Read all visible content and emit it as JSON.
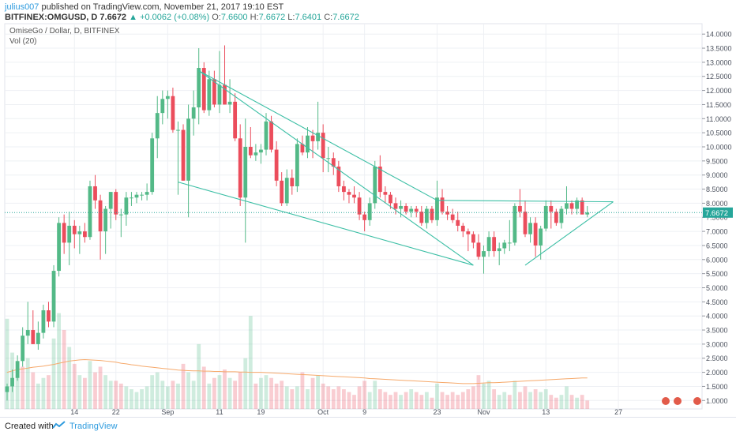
{
  "header": {
    "author": "julius007",
    "published_text": "published on TradingView.com, November 21, 2017 19:10 EST",
    "symbol": "BITFINEX:OMGUSD, D",
    "last": "7.6672",
    "change": "+0.0062 (+0.08%)",
    "o_label": "O:",
    "o_val": "7.6600",
    "h_label": "H:",
    "h_val": "7.6672",
    "l_label": "L:",
    "l_val": "7.6401",
    "c_label": "C:",
    "c_val": "7.6672"
  },
  "footer": {
    "created_with": "Created with",
    "brand": "TradingView"
  },
  "colors": {
    "up": "#53b987",
    "down": "#eb4d5c",
    "trendline": "#3cbfa5",
    "ma": "#f6a96b",
    "grid": "#eef0f4",
    "axis": "#9598a1",
    "price_tag": "#26a69a"
  },
  "chart_data": {
    "type": "candlestick",
    "title": "OmiseGo / Dollar, D, BITFINEX",
    "indicator": "Vol (20)",
    "ylim": [
      0.7,
      14.3
    ],
    "y_ticks": [
      "14.0000",
      "13.5000",
      "13.0000",
      "12.5000",
      "12.0000",
      "11.5000",
      "11.0000",
      "10.5000",
      "10.0000",
      "9.5000",
      "9.0000",
      "8.5000",
      "8.0000",
      "7.5000",
      "7.0000",
      "6.5000",
      "6.0000",
      "5.5000",
      "5.0000",
      "4.5000",
      "4.0000",
      "3.5000",
      "3.0000",
      "2.5000",
      "2.0000",
      "1.5000",
      "1.0000"
    ],
    "x_ticks": [
      {
        "label": "14",
        "day": 13
      },
      {
        "label": "22",
        "day": 21
      },
      {
        "label": "Sep",
        "day": 31
      },
      {
        "label": "11",
        "day": 41
      },
      {
        "label": "19",
        "day": 49
      },
      {
        "label": "Oct",
        "day": 61
      },
      {
        "label": "9",
        "day": 69
      },
      {
        "label": "23",
        "day": 83
      },
      {
        "label": "Nov",
        "day": 92
      },
      {
        "label": "13",
        "day": 104
      },
      {
        "label": "27",
        "day": 118
      }
    ],
    "current_price": "7.6672",
    "candles": [
      [
        1.3,
        1.6,
        1.0,
        1.5
      ],
      [
        1.5,
        2.1,
        1.3,
        1.8
      ],
      [
        1.8,
        2.6,
        1.7,
        2.4
      ],
      [
        2.4,
        3.6,
        2.2,
        3.3
      ],
      [
        3.3,
        4.5,
        3.0,
        3.5
      ],
      [
        3.5,
        4.2,
        3.0,
        3.0
      ],
      [
        3.0,
        3.8,
        2.8,
        3.4
      ],
      [
        3.4,
        4.4,
        3.2,
        4.2
      ],
      [
        4.2,
        4.5,
        3.6,
        3.8
      ],
      [
        3.8,
        5.8,
        3.6,
        5.6
      ],
      [
        5.6,
        7.5,
        5.4,
        7.3
      ],
      [
        7.3,
        7.6,
        6.2,
        6.6
      ],
      [
        6.6,
        7.7,
        5.8,
        7.2
      ],
      [
        7.2,
        7.4,
        6.4,
        6.9
      ],
      [
        6.9,
        7.2,
        6.2,
        7.0
      ],
      [
        7.0,
        7.3,
        6.6,
        6.8
      ],
      [
        6.8,
        8.8,
        6.7,
        8.6
      ],
      [
        8.6,
        9.0,
        7.8,
        8.1
      ],
      [
        8.1,
        8.3,
        6.0,
        7.0
      ],
      [
        7.0,
        7.9,
        6.2,
        7.8
      ],
      [
        7.8,
        8.4,
        7.1,
        8.4
      ],
      [
        8.4,
        8.5,
        7.4,
        7.6
      ],
      [
        7.6,
        7.8,
        6.8,
        7.6
      ],
      [
        7.6,
        8.4,
        7.2,
        8.2
      ],
      [
        8.2,
        8.4,
        7.9,
        8.2
      ],
      [
        8.2,
        8.4,
        8.0,
        8.3
      ],
      [
        8.3,
        8.4,
        8.1,
        8.3
      ],
      [
        8.3,
        8.7,
        8.1,
        8.4
      ],
      [
        8.4,
        10.5,
        8.3,
        10.3
      ],
      [
        10.3,
        11.8,
        9.6,
        11.2
      ],
      [
        11.2,
        12.0,
        10.8,
        11.7
      ],
      [
        11.7,
        12.0,
        11.0,
        11.8
      ],
      [
        11.8,
        12.1,
        10.5,
        10.6
      ],
      [
        10.6,
        10.9,
        8.3,
        10.6
      ],
      [
        10.6,
        10.8,
        8.8,
        8.8
      ],
      [
        8.8,
        11.5,
        7.5,
        11.0
      ],
      [
        11.0,
        12.0,
        10.4,
        11.4
      ],
      [
        11.4,
        13.5,
        10.8,
        12.8
      ],
      [
        12.8,
        13.0,
        11.2,
        11.3
      ],
      [
        11.3,
        12.7,
        11.1,
        12.4
      ],
      [
        12.4,
        12.7,
        11.4,
        11.5
      ],
      [
        11.5,
        13.4,
        11.2,
        12.2
      ],
      [
        12.2,
        13.6,
        11.5,
        11.5
      ],
      [
        11.5,
        12.4,
        11.2,
        11.6
      ],
      [
        11.6,
        11.9,
        10.2,
        10.3
      ],
      [
        10.3,
        10.8,
        7.9,
        8.2
      ],
      [
        8.2,
        11.0,
        6.6,
        10.0
      ],
      [
        10.0,
        10.7,
        9.6,
        9.7
      ],
      [
        9.7,
        10.1,
        9.5,
        9.8
      ],
      [
        9.8,
        10.1,
        9.4,
        9.9
      ],
      [
        9.9,
        11.2,
        9.7,
        10.9
      ],
      [
        10.9,
        11.1,
        9.8,
        9.9
      ],
      [
        9.9,
        10.2,
        8.6,
        8.8
      ],
      [
        8.8,
        9.1,
        7.9,
        8.0
      ],
      [
        8.0,
        9.2,
        7.9,
        8.9
      ],
      [
        8.9,
        9.2,
        8.3,
        8.6
      ],
      [
        8.6,
        10.3,
        8.4,
        10.1
      ],
      [
        10.1,
        10.4,
        9.7,
        9.8
      ],
      [
        9.8,
        10.7,
        9.6,
        10.4
      ],
      [
        10.4,
        10.6,
        9.6,
        10.2
      ],
      [
        10.2,
        11.6,
        9.9,
        10.5
      ],
      [
        10.5,
        10.8,
        9.1,
        9.6
      ],
      [
        9.6,
        10.0,
        9.1,
        9.6
      ],
      [
        9.6,
        9.8,
        9.0,
        9.3
      ],
      [
        9.3,
        9.5,
        8.4,
        8.6
      ],
      [
        8.6,
        8.8,
        8.1,
        8.4
      ],
      [
        8.4,
        8.5,
        8.0,
        8.3
      ],
      [
        8.3,
        8.6,
        8.0,
        8.2
      ],
      [
        8.2,
        8.4,
        7.4,
        7.6
      ],
      [
        7.6,
        7.7,
        7.0,
        7.4
      ],
      [
        7.4,
        8.2,
        7.2,
        8.0
      ],
      [
        8.0,
        9.5,
        7.8,
        9.3
      ],
      [
        9.3,
        9.7,
        8.2,
        8.4
      ],
      [
        8.4,
        8.6,
        8.0,
        8.3
      ],
      [
        8.3,
        8.4,
        7.8,
        8.0
      ],
      [
        8.0,
        8.2,
        7.6,
        7.8
      ],
      [
        7.8,
        8.1,
        7.5,
        7.9
      ],
      [
        7.9,
        8.0,
        7.6,
        7.7
      ],
      [
        7.7,
        7.9,
        7.5,
        7.8
      ],
      [
        7.8,
        7.9,
        7.5,
        7.7
      ],
      [
        7.7,
        7.9,
        7.2,
        7.3
      ],
      [
        7.3,
        7.9,
        7.1,
        7.8
      ],
      [
        7.8,
        7.9,
        7.3,
        7.4
      ],
      [
        7.4,
        8.8,
        7.2,
        8.2
      ],
      [
        8.2,
        8.5,
        7.6,
        7.7
      ],
      [
        7.7,
        7.9,
        7.4,
        7.6
      ],
      [
        7.6,
        7.8,
        7.3,
        7.4
      ],
      [
        7.4,
        7.7,
        7.0,
        7.2
      ],
      [
        7.2,
        7.3,
        6.8,
        7.0
      ],
      [
        7.0,
        7.1,
        6.3,
        6.9
      ],
      [
        6.9,
        7.0,
        6.4,
        6.6
      ],
      [
        6.6,
        6.9,
        6.0,
        6.1
      ],
      [
        6.1,
        6.5,
        5.5,
        6.3
      ],
      [
        6.3,
        7.0,
        6.1,
        6.8
      ],
      [
        6.8,
        7.0,
        6.1,
        6.3
      ],
      [
        6.3,
        6.6,
        5.8,
        6.4
      ],
      [
        6.4,
        6.7,
        6.2,
        6.6
      ],
      [
        6.6,
        7.4,
        6.3,
        6.6
      ],
      [
        6.6,
        8.0,
        6.5,
        7.9
      ],
      [
        7.9,
        8.5,
        7.5,
        7.7
      ],
      [
        7.7,
        8.1,
        6.8,
        6.9
      ],
      [
        6.9,
        7.5,
        6.6,
        7.3
      ],
      [
        7.3,
        7.5,
        6.1,
        6.5
      ],
      [
        6.5,
        7.2,
        6.0,
        7.1
      ],
      [
        7.1,
        8.1,
        7.0,
        7.9
      ],
      [
        7.9,
        8.1,
        7.1,
        7.7
      ],
      [
        7.7,
        7.8,
        7.2,
        7.3
      ],
      [
        7.3,
        7.9,
        7.1,
        7.8
      ],
      [
        7.8,
        8.6,
        7.6,
        8.0
      ],
      [
        8.0,
        8.1,
        7.6,
        7.8
      ],
      [
        7.8,
        8.2,
        7.6,
        8.1
      ],
      [
        8.1,
        8.2,
        7.6,
        7.6
      ],
      [
        7.6,
        7.9,
        7.5,
        7.67
      ]
    ],
    "volume": [
      [
        3.2,
        1
      ],
      [
        2.0,
        1
      ],
      [
        1.2,
        1
      ],
      [
        1.5,
        0
      ],
      [
        1.8,
        1
      ],
      [
        1.3,
        0
      ],
      [
        0.9,
        1
      ],
      [
        1.1,
        1
      ],
      [
        1.2,
        0
      ],
      [
        2.5,
        1
      ],
      [
        3.4,
        1
      ],
      [
        2.8,
        0
      ],
      [
        2.2,
        1
      ],
      [
        1.6,
        0
      ],
      [
        1.2,
        1
      ],
      [
        1.1,
        0
      ],
      [
        1.7,
        1
      ],
      [
        1.3,
        0
      ],
      [
        1.5,
        0
      ],
      [
        1.2,
        1
      ],
      [
        1.0,
        1
      ],
      [
        1.0,
        0
      ],
      [
        0.9,
        0
      ],
      [
        0.8,
        1
      ],
      [
        0.7,
        1
      ],
      [
        0.6,
        1
      ],
      [
        0.7,
        1
      ],
      [
        0.8,
        1
      ],
      [
        1.2,
        1
      ],
      [
        1.3,
        1
      ],
      [
        1.0,
        1
      ],
      [
        0.8,
        1
      ],
      [
        1.0,
        0
      ],
      [
        0.9,
        1
      ],
      [
        1.6,
        0
      ],
      [
        1.3,
        1
      ],
      [
        1.0,
        1
      ],
      [
        2.3,
        1
      ],
      [
        1.5,
        0
      ],
      [
        0.9,
        1
      ],
      [
        1.1,
        0
      ],
      [
        1.2,
        1
      ],
      [
        1.4,
        0
      ],
      [
        1.1,
        1
      ],
      [
        1.0,
        0
      ],
      [
        1.3,
        0
      ],
      [
        1.8,
        1
      ],
      [
        3.3,
        1
      ],
      [
        0.9,
        0
      ],
      [
        1.1,
        1
      ],
      [
        1.2,
        1
      ],
      [
        1.1,
        0
      ],
      [
        0.9,
        0
      ],
      [
        1.0,
        0
      ],
      [
        0.8,
        1
      ],
      [
        0.7,
        0
      ],
      [
        0.8,
        1
      ],
      [
        1.3,
        0
      ],
      [
        0.7,
        1
      ],
      [
        1.1,
        0
      ],
      [
        1.2,
        1
      ],
      [
        0.9,
        0
      ],
      [
        0.8,
        0
      ],
      [
        0.7,
        0
      ],
      [
        0.8,
        0
      ],
      [
        0.7,
        0
      ],
      [
        0.6,
        0
      ],
      [
        0.5,
        0
      ],
      [
        0.8,
        0
      ],
      [
        1.0,
        0
      ],
      [
        0.6,
        1
      ],
      [
        1.0,
        1
      ],
      [
        0.7,
        0
      ],
      [
        0.6,
        0
      ],
      [
        0.5,
        0
      ],
      [
        0.6,
        0
      ],
      [
        0.5,
        1
      ],
      [
        0.6,
        0
      ],
      [
        0.7,
        1
      ],
      [
        0.6,
        0
      ],
      [
        0.5,
        0
      ],
      [
        0.6,
        1
      ],
      [
        0.4,
        0
      ],
      [
        0.9,
        1
      ],
      [
        0.6,
        0
      ],
      [
        0.5,
        0
      ],
      [
        0.6,
        0
      ],
      [
        0.5,
        0
      ],
      [
        0.6,
        0
      ],
      [
        0.7,
        0
      ],
      [
        0.8,
        0
      ],
      [
        1.2,
        0
      ],
      [
        0.9,
        1
      ],
      [
        1.0,
        1
      ],
      [
        0.7,
        0
      ],
      [
        0.5,
        1
      ],
      [
        0.6,
        1
      ],
      [
        0.5,
        0
      ],
      [
        1.0,
        1
      ],
      [
        0.6,
        0
      ],
      [
        0.8,
        0
      ],
      [
        0.6,
        1
      ],
      [
        0.7,
        0
      ],
      [
        0.6,
        1
      ],
      [
        0.7,
        1
      ],
      [
        0.5,
        0
      ],
      [
        0.4,
        0
      ],
      [
        0.5,
        1
      ],
      [
        0.8,
        1
      ],
      [
        0.5,
        0
      ],
      [
        0.4,
        1
      ],
      [
        0.5,
        0
      ],
      [
        0.3,
        0
      ]
    ],
    "ma_label": "Vol MA (20)",
    "ma": [
      1.3,
      1.35,
      1.4,
      1.42,
      1.45,
      1.48,
      1.5,
      1.52,
      1.55,
      1.58,
      1.62,
      1.66,
      1.7,
      1.72,
      1.74,
      1.75,
      1.74,
      1.73,
      1.72,
      1.7,
      1.68,
      1.66,
      1.62,
      1.6,
      1.57,
      1.55,
      1.52,
      1.5,
      1.48,
      1.46,
      1.44,
      1.42,
      1.4,
      1.38,
      1.37,
      1.36,
      1.35,
      1.35,
      1.34,
      1.34,
      1.33,
      1.33,
      1.32,
      1.32,
      1.32,
      1.31,
      1.31,
      1.3,
      1.3,
      1.3,
      1.29,
      1.28,
      1.27,
      1.26,
      1.25,
      1.24,
      1.23,
      1.22,
      1.21,
      1.2,
      1.19,
      1.18,
      1.17,
      1.16,
      1.15,
      1.14,
      1.13,
      1.12,
      1.11,
      1.1,
      1.08,
      1.07,
      1.06,
      1.05,
      1.04,
      1.03,
      1.02,
      1.01,
      1.0,
      0.99,
      0.98,
      0.97,
      0.96,
      0.95,
      0.94,
      0.93,
      0.92,
      0.91,
      0.9,
      0.9,
      0.9,
      0.91,
      0.92,
      0.93,
      0.93,
      0.94,
      0.95,
      0.96,
      0.97,
      0.98,
      0.99,
      1.0,
      1.01,
      1.02,
      1.03,
      1.04,
      1.05,
      1.06,
      1.07,
      1.08,
      1.09,
      1.1,
      1.1
    ],
    "trendlines": [
      {
        "from": [
          37,
          12.7
        ],
        "to": [
          90,
          5.8
        ]
      },
      {
        "from": [
          33,
          8.75
        ],
        "to": [
          90,
          5.8
        ]
      },
      {
        "from": [
          37,
          12.7
        ],
        "to": [
          83,
          8.1
        ]
      },
      {
        "from": [
          83,
          8.1
        ],
        "to": [
          117,
          8.05
        ]
      },
      {
        "from": [
          100,
          5.8
        ],
        "to": [
          117,
          8.05
        ]
      }
    ]
  }
}
